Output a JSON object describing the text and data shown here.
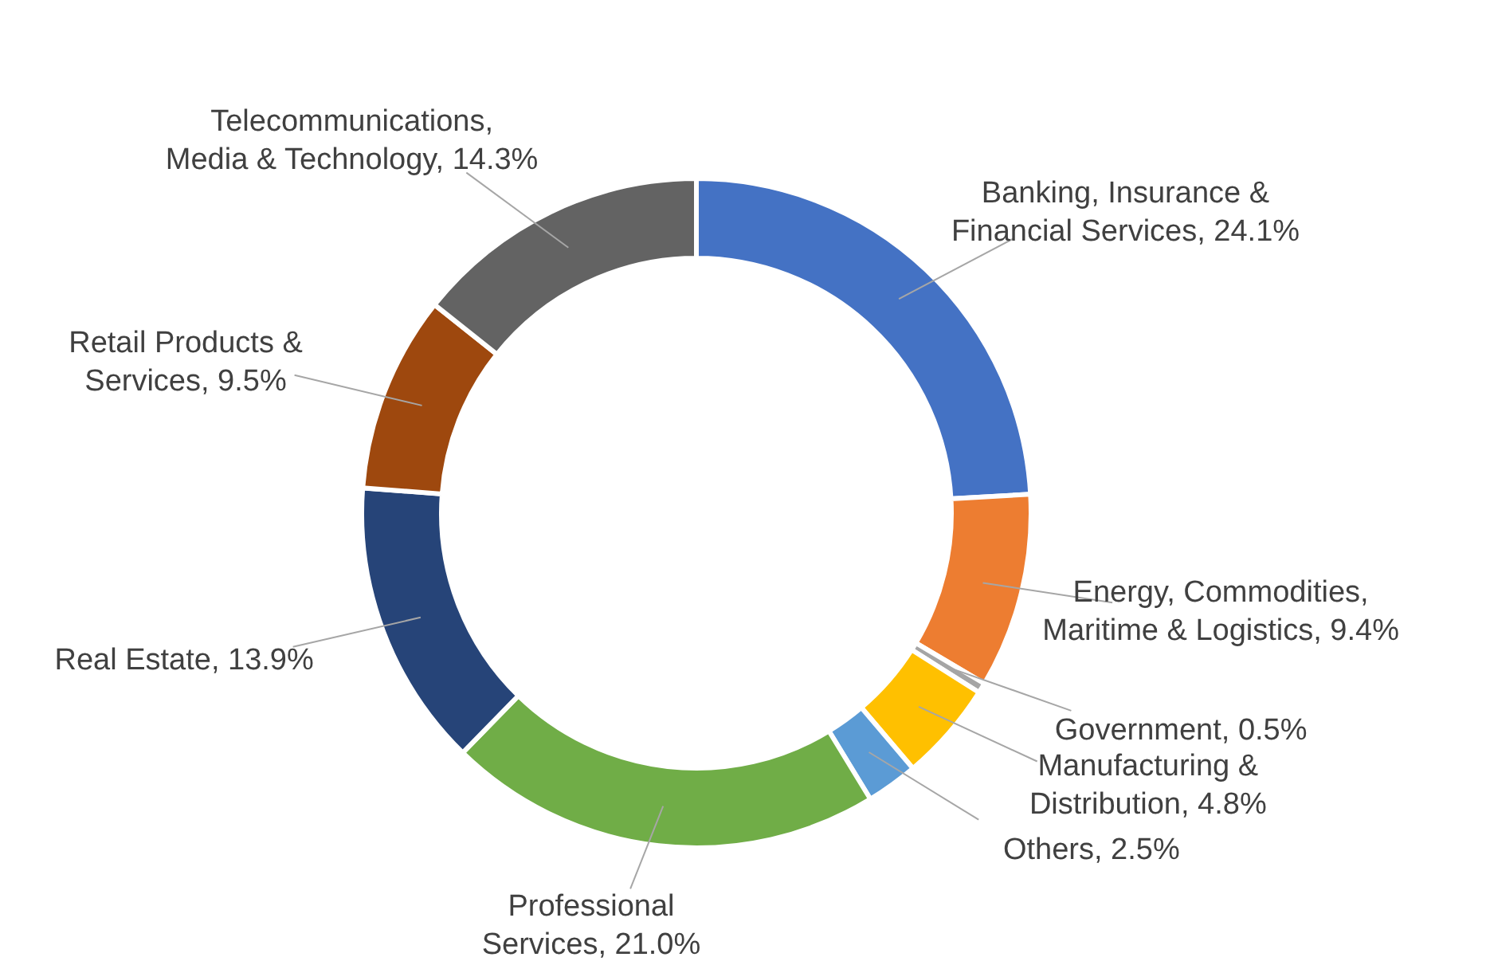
{
  "chart_data": {
    "type": "donut",
    "categories": [
      "Banking, Insurance & Financial Services",
      "Energy, Commodities, Maritime & Logistics",
      "Government",
      "Manufacturing & Distribution",
      "Others",
      "Professional Services",
      "Real Estate",
      "Retail Products & Services",
      "Telecommunications, Media & Technology"
    ],
    "values": [
      24.1,
      9.4,
      0.5,
      4.8,
      2.5,
      21.0,
      13.9,
      9.5,
      14.3
    ],
    "value_labels": [
      "24.1%",
      "9.4%",
      "0.5%",
      "4.8%",
      "2.5%",
      "21.0%",
      "13.9%",
      "9.5%",
      "14.3%"
    ],
    "colors": [
      "#4472c4",
      "#ed7d31",
      "#a5a5a5",
      "#ffc000",
      "#5b9bd5",
      "#70ad47",
      "#264478",
      "#9e480e",
      "#636363"
    ]
  }
}
